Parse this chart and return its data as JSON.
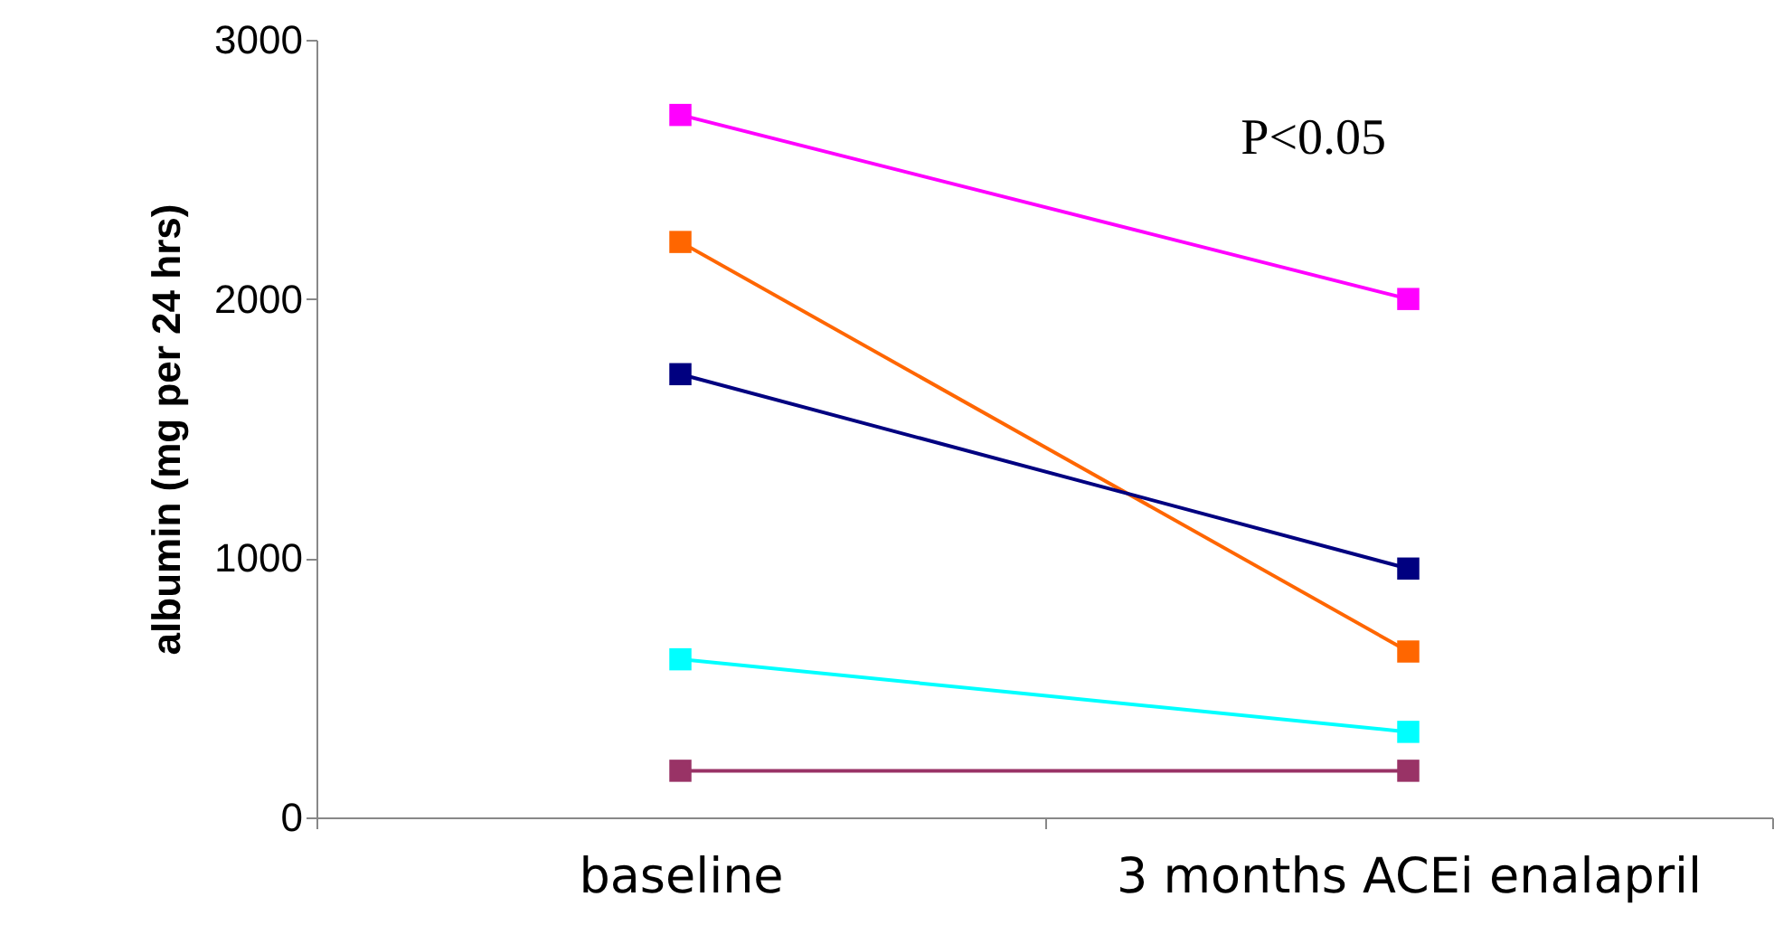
{
  "chart_data": {
    "type": "line",
    "ylabel": "albumin (mg per 24 hrs)",
    "categories": [
      "baseline",
      "3 months ACEi enalapril"
    ],
    "series": [
      {
        "color": "#ff00ff",
        "values": [
          2710,
          2000
        ]
      },
      {
        "color": "#ff6600",
        "values": [
          2220,
          640
        ]
      },
      {
        "color": "#000080",
        "values": [
          1710,
          960
        ]
      },
      {
        "color": "#00ffff",
        "values": [
          610,
          330
        ]
      },
      {
        "color": "#993366",
        "values": [
          180,
          180
        ]
      }
    ],
    "ylim": [
      0,
      3000
    ],
    "yticks": [
      0,
      1000,
      2000,
      3000
    ],
    "grid": false,
    "legend": false,
    "marker": "square",
    "line_style": "solid",
    "annotations": [
      "P<0.05"
    ]
  }
}
